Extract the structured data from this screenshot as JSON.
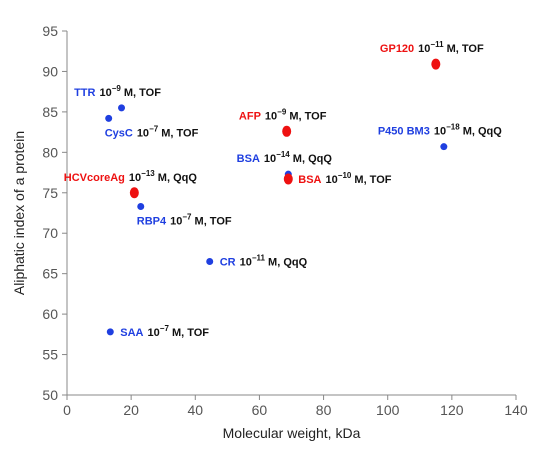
{
  "chart_data": {
    "type": "scatter",
    "title": "",
    "xlabel": "Molecular weight, kDa",
    "ylabel": "Aliphatic index of a protein",
    "xlim": [
      0,
      140
    ],
    "ylim": [
      50,
      95
    ],
    "xticks": [
      0,
      20,
      40,
      60,
      80,
      100,
      120,
      140
    ],
    "yticks": [
      50,
      55,
      60,
      65,
      70,
      75,
      80,
      85,
      90,
      95
    ],
    "grid": false,
    "legend": "none",
    "colors": {
      "blue_series": "#1f3fe0",
      "red_series": "#ee1111",
      "text": "#111111"
    },
    "points": [
      {
        "x": 13.5,
        "y": 57.8,
        "color": "#1f3fe0",
        "size": "small",
        "name": "SAA",
        "conc_base": "10",
        "conc_exp": "−7",
        "method": " M, TOF",
        "label_anchor": "right-below"
      },
      {
        "x": 13.0,
        "y": 84.2,
        "color": "#1f3fe0",
        "size": "small",
        "name": "CysC",
        "conc_base": "10",
        "conc_exp": "−7",
        "method": " M, TOF",
        "label_anchor": "below-right"
      },
      {
        "x": 17.0,
        "y": 85.5,
        "color": "#1f3fe0",
        "size": "small",
        "name": "TTR",
        "conc_base": "10",
        "conc_exp": "−9",
        "method": " M, TOF",
        "label_anchor": "above"
      },
      {
        "x": 21.0,
        "y": 75.0,
        "color": "#ee1111",
        "size": "large",
        "name": "HCVcoreAg",
        "conc_base": "10",
        "conc_exp": "−13",
        "method": " M, QqQ",
        "label_anchor": "above"
      },
      {
        "x": 23.0,
        "y": 73.3,
        "color": "#1f3fe0",
        "size": "small",
        "name": "RBP4",
        "conc_base": "10",
        "conc_exp": "−7",
        "method": " M, TOF",
        "label_anchor": "below-right"
      },
      {
        "x": 44.5,
        "y": 66.5,
        "color": "#1f3fe0",
        "size": "small",
        "name": "CR",
        "conc_base": "10",
        "conc_exp": "−11",
        "method": " M, QqQ",
        "label_anchor": "right-below"
      },
      {
        "x": 68.5,
        "y": 82.6,
        "color": "#ee1111",
        "size": "large",
        "name": "AFP",
        "conc_base": "10",
        "conc_exp": "−9",
        "method": " M, TOF",
        "label_anchor": "above"
      },
      {
        "x": 69.0,
        "y": 77.3,
        "color": "#1f3fe0",
        "size": "small",
        "name": "BSA",
        "conc_base": "10",
        "conc_exp": "−14",
        "method": " M, QqQ",
        "label_anchor": "above"
      },
      {
        "x": 69.0,
        "y": 76.7,
        "color": "#ee1111",
        "size": "large",
        "name": "BSA",
        "conc_base": "10",
        "conc_exp": "−10",
        "method": " M, TOF",
        "label_anchor": "right-below"
      },
      {
        "x": 115.0,
        "y": 90.9,
        "color": "#ee1111",
        "size": "large",
        "name": "GP120",
        "conc_base": "10",
        "conc_exp": "−11",
        "method": " M, TOF",
        "label_anchor": "above"
      },
      {
        "x": 117.5,
        "y": 80.7,
        "color": "#1f3fe0",
        "size": "small",
        "name": "P450 BM3",
        "conc_base": "10",
        "conc_exp": "−18",
        "method": " M, QqQ",
        "label_anchor": "above"
      }
    ]
  }
}
